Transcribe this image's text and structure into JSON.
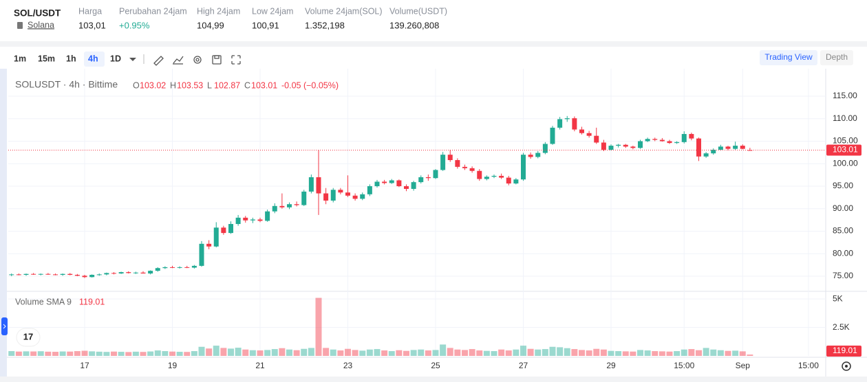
{
  "header": {
    "pair": "SOL/USDT",
    "name": "Solana",
    "stats": [
      {
        "label": "Harga",
        "value": "103,01"
      },
      {
        "label": "Perubahan 24jam",
        "value": "+0.95%"
      },
      {
        "label": "High 24jam",
        "value": "104,99"
      },
      {
        "label": "Low 24jam",
        "value": "100,91"
      },
      {
        "label": "Volume 24jam(SOL)",
        "value": "1.352,198"
      },
      {
        "label": "Volume(USDT)",
        "value": "139.260,808"
      }
    ]
  },
  "toolbar": {
    "intervals": [
      "1m",
      "15m",
      "1h",
      "4h",
      "1D"
    ],
    "active": "4h",
    "views": [
      "Trading View",
      "Depth"
    ]
  },
  "chart_data": {
    "type": "candlestick",
    "title": "SOLUSDT · 4h · Bittime",
    "legend_keys": [
      "O",
      "H",
      "L",
      "C"
    ],
    "change": "-0.05 (−0.05%)",
    "volume_title": "Volume SMA 9",
    "categories": [
      null,
      null,
      null,
      null,
      null,
      null,
      null,
      null,
      null,
      null,
      "17",
      null,
      null,
      null,
      null,
      null,
      null,
      null,
      null,
      null,
      null,
      null,
      "19",
      null,
      null,
      null,
      null,
      null,
      null,
      null,
      null,
      null,
      null,
      null,
      "21",
      null,
      null,
      null,
      null,
      null,
      null,
      null,
      null,
      null,
      null,
      null,
      "23",
      null,
      null,
      null,
      null,
      null,
      null,
      null,
      null,
      null,
      null,
      null,
      "25",
      null,
      null,
      null,
      null,
      null,
      null,
      null,
      null,
      null,
      null,
      null,
      "27",
      null,
      null,
      null,
      null,
      null,
      null,
      null,
      null,
      null,
      null,
      null,
      "29",
      null,
      null,
      null,
      null,
      null,
      null,
      null,
      null,
      null,
      "15:00",
      null,
      null,
      null,
      null,
      null,
      null,
      null,
      "Sep",
      null,
      null,
      null,
      null,
      null,
      null,
      null,
      null,
      "15:00"
    ],
    "open": [
      75.3,
      75.4,
      75.3,
      75.5,
      75.4,
      75.5,
      75.4,
      75.3,
      75.5,
      75.3,
      75.1,
      74.8,
      75.3,
      75.4,
      75.7,
      75.6,
      75.9,
      75.7,
      75.8,
      75.6,
      76.2,
      76.8,
      77.0,
      76.9,
      77.0,
      76.9,
      77.3,
      82.2,
      81.6,
      85.8,
      84.6,
      86.6,
      88.0,
      87.4,
      87.6,
      87.3,
      89.4,
      90.6,
      90.3,
      91.0,
      90.8,
      93.8,
      97.0,
      93.4,
      91.8,
      94.2,
      93.6,
      92.9,
      92.2,
      93.2,
      95.0,
      96.0,
      95.7,
      96.3,
      95.0,
      94.4,
      95.9,
      97.0,
      96.8,
      98.6,
      102.0,
      100.8,
      99.3,
      99.0,
      98.4,
      96.6,
      97.1,
      97.3,
      96.9,
      95.6,
      96.5,
      102.0,
      101.5,
      102.4,
      104.4,
      108.0,
      109.9,
      110.1,
      107.6,
      106.8,
      106.2,
      104.7,
      103.1,
      104.0,
      104.2,
      103.8,
      103.5,
      105.0,
      105.5,
      105.3,
      105.0,
      104.6,
      104.8,
      106.6,
      105.6,
      101.6,
      102.3,
      103.1,
      103.8,
      103.3,
      104.0,
      103.02,
      null,
      null,
      null,
      null,
      null,
      null,
      null,
      null
    ],
    "high": [
      75.6,
      75.6,
      75.6,
      75.7,
      75.6,
      75.7,
      75.6,
      75.6,
      75.7,
      75.5,
      75.3,
      75.4,
      75.6,
      75.8,
      75.9,
      76.0,
      76.1,
      76.0,
      76.1,
      76.3,
      77.0,
      77.2,
      77.3,
      77.2,
      77.3,
      77.5,
      82.8,
      83.0,
      87.0,
      86.2,
      87.2,
      88.6,
      88.4,
      88.0,
      88.0,
      89.8,
      91.2,
      93.4,
      91.4,
      91.6,
      94.2,
      97.6,
      103.0,
      94.6,
      94.6,
      94.6,
      97.4,
      93.4,
      93.6,
      95.4,
      96.4,
      96.4,
      96.6,
      96.5,
      95.4,
      96.2,
      97.4,
      97.6,
      98.8,
      102.6,
      103.1,
      101.2,
      99.8,
      99.4,
      98.8,
      97.4,
      97.6,
      97.8,
      97.3,
      96.8,
      102.4,
      102.5,
      102.8,
      104.8,
      108.4,
      110.4,
      110.6,
      110.5,
      108.2,
      107.3,
      108.0,
      105.3,
      104.3,
      104.4,
      104.4,
      104.0,
      105.3,
      105.8,
      105.8,
      105.7,
      105.3,
      105.0,
      107.2,
      106.9,
      105.8,
      102.6,
      103.4,
      104.2,
      104.0,
      104.9,
      104.3,
      103.53,
      null,
      null,
      null,
      null,
      null,
      null,
      null,
      null
    ],
    "low": [
      75.0,
      75.2,
      75.1,
      75.3,
      75.2,
      75.3,
      75.2,
      75.1,
      75.2,
      75.0,
      74.6,
      74.7,
      75.1,
      75.2,
      75.4,
      75.5,
      75.6,
      75.5,
      75.6,
      75.4,
      76.0,
      76.6,
      76.8,
      76.7,
      76.8,
      76.7,
      77.1,
      81.0,
      81.4,
      84.2,
      84.4,
      86.2,
      86.9,
      86.8,
      87.0,
      87.1,
      89.0,
      90.0,
      89.9,
      90.5,
      90.6,
      93.4,
      88.6,
      91.0,
      91.4,
      93.2,
      92.6,
      91.8,
      91.9,
      92.8,
      94.7,
      95.4,
      95.5,
      94.8,
      93.9,
      94.0,
      95.6,
      96.2,
      96.6,
      98.4,
      100.4,
      98.9,
      98.6,
      98.0,
      96.2,
      96.3,
      96.8,
      96.6,
      95.2,
      95.4,
      96.2,
      101.1,
      101.2,
      102.1,
      104.2,
      107.6,
      109.3,
      107.2,
      106.5,
      105.8,
      104.4,
      102.8,
      102.9,
      103.6,
      103.5,
      103.2,
      103.3,
      104.8,
      105.0,
      104.9,
      104.4,
      104.4,
      104.5,
      105.2,
      100.6,
      101.3,
      102.0,
      102.9,
      103.0,
      103.1,
      103.2,
      102.87,
      null,
      null,
      null,
      null,
      null,
      null,
      null,
      null
    ],
    "close": [
      75.4,
      75.3,
      75.5,
      75.4,
      75.5,
      75.4,
      75.3,
      75.5,
      75.3,
      75.1,
      74.8,
      75.3,
      75.4,
      75.7,
      75.6,
      75.9,
      75.7,
      75.8,
      75.6,
      76.2,
      76.8,
      77.0,
      76.9,
      77.0,
      76.9,
      77.3,
      82.2,
      81.6,
      85.8,
      84.6,
      86.6,
      88.0,
      87.4,
      87.6,
      87.3,
      89.4,
      90.6,
      90.3,
      91.0,
      90.8,
      93.8,
      97.0,
      93.4,
      91.8,
      94.2,
      93.6,
      92.9,
      92.2,
      93.2,
      95.0,
      96.0,
      95.7,
      96.3,
      95.0,
      94.4,
      95.9,
      97.0,
      96.8,
      98.6,
      102.0,
      100.8,
      99.3,
      99.0,
      98.4,
      96.6,
      97.1,
      97.3,
      96.9,
      95.6,
      96.5,
      102.0,
      101.5,
      102.4,
      104.4,
      108.0,
      109.9,
      110.1,
      107.6,
      106.8,
      106.2,
      104.7,
      103.1,
      104.0,
      104.2,
      103.8,
      103.5,
      105.0,
      105.5,
      105.3,
      105.0,
      104.6,
      104.8,
      106.6,
      105.6,
      101.6,
      102.3,
      103.1,
      103.8,
      103.3,
      104.0,
      103.3,
      103.01,
      null,
      null,
      null,
      null,
      null,
      null,
      null,
      null
    ],
    "volume": [
      420,
      380,
      400,
      390,
      410,
      370,
      360,
      390,
      380,
      420,
      450,
      400,
      370,
      350,
      380,
      360,
      340,
      370,
      350,
      390,
      480,
      420,
      380,
      360,
      350,
      420,
      800,
      650,
      900,
      700,
      640,
      720,
      560,
      500,
      480,
      520,
      600,
      680,
      560,
      500,
      620,
      700,
      5100,
      700,
      560,
      480,
      620,
      520,
      460,
      560,
      600,
      480,
      420,
      500,
      440,
      520,
      560,
      480,
      520,
      1000,
      700,
      560,
      520,
      600,
      480,
      440,
      420,
      560,
      480,
      560,
      900,
      620,
      560,
      600,
      800,
      760,
      680,
      600,
      520,
      480,
      620,
      560,
      440,
      420,
      400,
      380,
      520,
      480,
      420,
      400,
      380,
      420,
      560,
      600,
      500,
      700,
      560,
      500,
      440,
      460,
      400,
      119.01,
      null,
      null,
      null,
      null,
      null,
      null,
      null,
      null
    ],
    "up_color": "#22ab94",
    "down_color": "#f23645",
    "ylim": [
      71.64,
      119.89
    ],
    "yticks": [
      {
        "value": 75,
        "label": "75.00"
      },
      {
        "value": 80,
        "label": "80.00"
      },
      {
        "value": 85,
        "label": "85.00"
      },
      {
        "value": 90,
        "label": "90.00"
      },
      {
        "value": 95,
        "label": "95.00"
      },
      {
        "value": 100,
        "label": "100.00"
      },
      {
        "value": 105,
        "label": "105.00"
      },
      {
        "value": 110,
        "label": "110.00"
      },
      {
        "value": 115,
        "label": "115.00"
      }
    ],
    "volume_ylim": [
      0,
      5432
    ],
    "volume_ticks": [
      {
        "value": 2500,
        "label": "2.5K"
      },
      {
        "value": 5000,
        "label": "5K"
      }
    ],
    "grid": true
  }
}
